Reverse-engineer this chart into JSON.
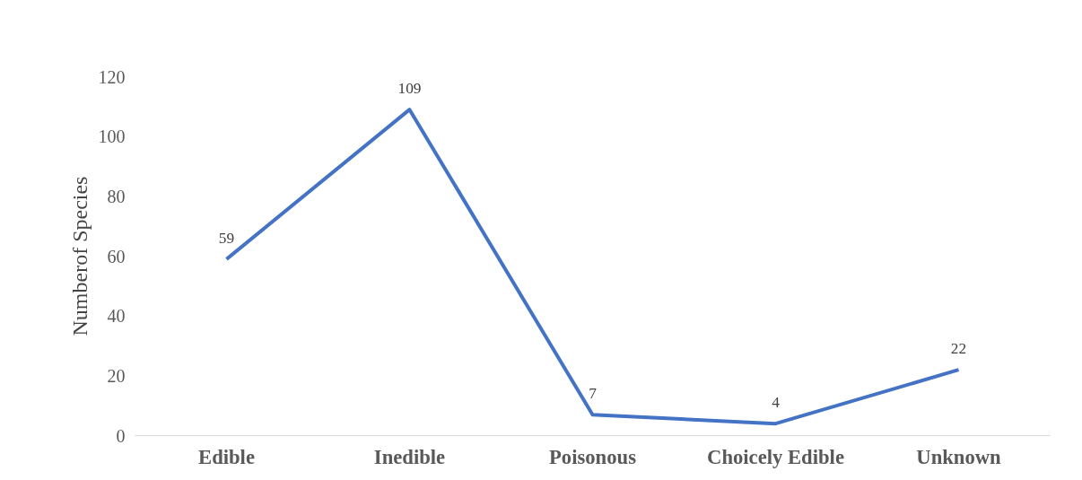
{
  "chart_data": {
    "type": "line",
    "categories": [
      "Edible",
      "Inedible",
      "Poisonous",
      "Choicely Edible",
      "Unknown"
    ],
    "series": [
      {
        "color": "#4472c4",
        "values": [
          59,
          109,
          7,
          4,
          22
        ]
      }
    ],
    "ylabel": "Numberof Species",
    "ylim": [
      0,
      120
    ],
    "yticks": [
      0,
      20,
      40,
      60,
      80,
      100,
      120
    ],
    "data_labels": true,
    "grid": false,
    "marker": "none",
    "line_style": "solid"
  }
}
